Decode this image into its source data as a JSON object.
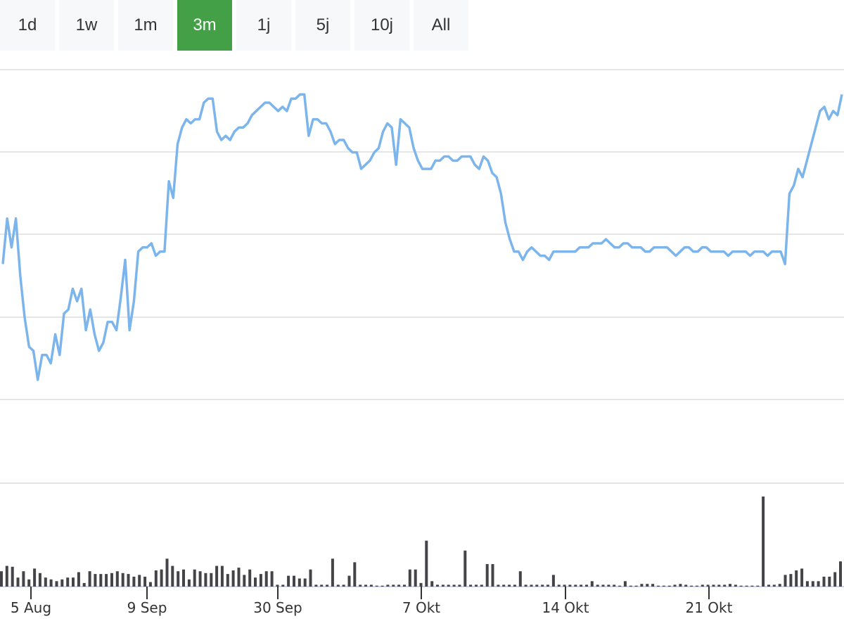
{
  "range_selector": {
    "options": [
      "1d",
      "1w",
      "1m",
      "3m",
      "1j",
      "5j",
      "10j",
      "All"
    ],
    "selected": "3m",
    "active_color": "#43a047"
  },
  "chart_data": [
    {
      "type": "line",
      "title": "",
      "xlabel": "",
      "ylabel": "",
      "color": "#7cb5ec",
      "x_tick_labels": [
        "5 Aug",
        "9 Sep",
        "30 Sep",
        "7 Okt",
        "14 Okt",
        "21 Okt"
      ],
      "grid": true,
      "y_tick_labels": [],
      "note": "price line; y values as fraction of plot height (0 = bottom, 1 = top), no y-axis labels shown",
      "values": [
        0.53,
        0.64,
        0.57,
        0.64,
        0.5,
        0.4,
        0.33,
        0.32,
        0.25,
        0.31,
        0.31,
        0.29,
        0.36,
        0.31,
        0.41,
        0.42,
        0.47,
        0.44,
        0.47,
        0.37,
        0.42,
        0.36,
        0.32,
        0.34,
        0.39,
        0.39,
        0.37,
        0.45,
        0.54,
        0.37,
        0.44,
        0.56,
        0.57,
        0.57,
        0.58,
        0.55,
        0.56,
        0.56,
        0.73,
        0.69,
        0.82,
        0.86,
        0.88,
        0.87,
        0.88,
        0.88,
        0.92,
        0.93,
        0.93,
        0.85,
        0.83,
        0.84,
        0.83,
        0.85,
        0.86,
        0.86,
        0.87,
        0.89,
        0.9,
        0.91,
        0.92,
        0.92,
        0.91,
        0.9,
        0.91,
        0.9,
        0.93,
        0.93,
        0.94,
        0.94,
        0.84,
        0.88,
        0.88,
        0.87,
        0.87,
        0.85,
        0.82,
        0.83,
        0.83,
        0.81,
        0.8,
        0.8,
        0.76,
        0.77,
        0.78,
        0.8,
        0.81,
        0.85,
        0.87,
        0.86,
        0.77,
        0.88,
        0.87,
        0.86,
        0.81,
        0.78,
        0.76,
        0.76,
        0.76,
        0.78,
        0.78,
        0.79,
        0.79,
        0.78,
        0.78,
        0.79,
        0.79,
        0.79,
        0.77,
        0.76,
        0.79,
        0.78,
        0.75,
        0.74,
        0.7,
        0.63,
        0.59,
        0.56,
        0.56,
        0.54,
        0.56,
        0.57,
        0.56,
        0.55,
        0.55,
        0.54,
        0.56,
        0.56,
        0.56,
        0.56,
        0.56,
        0.56,
        0.57,
        0.57,
        0.57,
        0.58,
        0.58,
        0.58,
        0.59,
        0.58,
        0.57,
        0.57,
        0.58,
        0.58,
        0.57,
        0.57,
        0.57,
        0.56,
        0.56,
        0.57,
        0.57,
        0.57,
        0.57,
        0.56,
        0.55,
        0.56,
        0.57,
        0.57,
        0.56,
        0.56,
        0.57,
        0.57,
        0.56,
        0.56,
        0.56,
        0.56,
        0.55,
        0.56,
        0.56,
        0.56,
        0.56,
        0.55,
        0.56,
        0.56,
        0.56,
        0.55,
        0.56,
        0.56,
        0.56,
        0.53,
        0.7,
        0.72,
        0.76,
        0.74,
        0.78,
        0.82,
        0.86,
        0.9,
        0.91,
        0.88,
        0.9,
        0.89,
        0.94
      ]
    },
    {
      "type": "bar",
      "title": "",
      "color": "#434348",
      "note": "volume bars; heights as fraction of the volume panel's largest bar",
      "values": [
        0.17,
        0.23,
        0.22,
        0.1,
        0.17,
        0.08,
        0.2,
        0.15,
        0.1,
        0.08,
        0.06,
        0.08,
        0.1,
        0.1,
        0.16,
        0.04,
        0.17,
        0.14,
        0.14,
        0.14,
        0.15,
        0.17,
        0.15,
        0.14,
        0.11,
        0.13,
        0.11,
        0.05,
        0.18,
        0.19,
        0.31,
        0.23,
        0.17,
        0.19,
        0.08,
        0.19,
        0.17,
        0.15,
        0.15,
        0.23,
        0.23,
        0.14,
        0.18,
        0.21,
        0.13,
        0.19,
        0.1,
        0.14,
        0.17,
        0.17,
        0.02,
        0.02,
        0.12,
        0.12,
        0.09,
        0.09,
        0.19,
        0.02,
        0.02,
        0.02,
        0.31,
        0.02,
        0.02,
        0.12,
        0.27,
        0.02,
        0.02,
        0.02,
        0.01,
        0.01,
        0.02,
        0.02,
        0.02,
        0.02,
        0.19,
        0.19,
        0.04,
        0.51,
        0.06,
        0.02,
        0.02,
        0.02,
        0.02,
        0.02,
        0.4,
        0.02,
        0.02,
        0.02,
        0.25,
        0.25,
        0.02,
        0.02,
        0.02,
        0.02,
        0.17,
        0.02,
        0.02,
        0.02,
        0.02,
        0.02,
        0.13,
        0.02,
        0.02,
        0.02,
        0.02,
        0.02,
        0.02,
        0.06,
        0.02,
        0.02,
        0.02,
        0.02,
        0.01,
        0.06,
        0.01,
        0.01,
        0.03,
        0.03,
        0.03,
        0.01,
        0.01,
        0.01,
        0.02,
        0.03,
        0.02,
        0.01,
        0.01,
        0.02,
        0.02,
        0.02,
        0.02,
        0.02,
        0.03,
        0.02,
        0.01,
        0.01,
        0.01,
        0.01,
        1.0,
        0.02,
        0.02,
        0.03,
        0.13,
        0.14,
        0.18,
        0.2,
        0.06,
        0.06,
        0.06,
        0.11,
        0.11,
        0.16,
        0.28
      ]
    }
  ]
}
